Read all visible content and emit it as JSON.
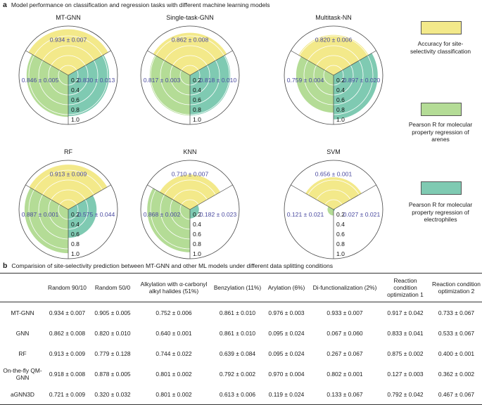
{
  "panel_a": {
    "letter": "a",
    "title": "Model performance on classification and regression tasks with different machine learning models"
  },
  "panel_b": {
    "letter": "b",
    "title": "Comparision of site-selectivity prediction between MT-GNN and other ML models under different data splitting conditions"
  },
  "colors": {
    "accuracy": "#f3e98a",
    "pearson_arenes": "#b4dc96",
    "pearson_electrophiles": "#7fcab2",
    "label_text": "#4a4aa0",
    "grid": "#ffffff"
  },
  "legend": [
    {
      "label": "Accuracy for site-selectivity classification",
      "color_key": "accuracy"
    },
    {
      "label": "Pearson R for molecular property regression of arenes",
      "color_key": "pearson_arenes"
    },
    {
      "label": "Pearson R for molecular property regression of electrophiles",
      "color_key": "pearson_electrophiles"
    }
  ],
  "chart_data": [
    {
      "type": "radar",
      "title": "MT-GNN",
      "radial_ticks": [
        "0.2",
        "0.4",
        "0.6",
        "0.8",
        "1.0"
      ],
      "rlim": [
        0,
        1
      ],
      "values": [
        0.934,
        0.846,
        0.83
      ],
      "labels": [
        "0.934 ± 0.007",
        "0.846 ± 0.005",
        "0.830 ± 0.013"
      ]
    },
    {
      "type": "radar",
      "title": "Single-task-GNN",
      "radial_ticks": [
        "0.2",
        "0.4",
        "0.6",
        "0.8",
        "1.0"
      ],
      "rlim": [
        0,
        1
      ],
      "values": [
        0.862,
        0.817,
        0.818
      ],
      "labels": [
        "0.862 ± 0.008",
        "0.817 ± 0.003",
        "0.818 ± 0.010"
      ]
    },
    {
      "type": "radar",
      "title": "Multitask-NN",
      "radial_ticks": [
        "0.2",
        "0.4",
        "0.6",
        "0.8",
        "1.0"
      ],
      "rlim": [
        0,
        1
      ],
      "values": [
        0.82,
        0.759,
        0.897
      ],
      "labels": [
        "0.820 ± 0.006",
        "0.759 ± 0.004",
        "0.897 ± 0.020"
      ]
    },
    {
      "type": "radar",
      "title": "RF",
      "radial_ticks": [
        "0.2",
        "0.4",
        "0.6",
        "0.8",
        "1.0"
      ],
      "rlim": [
        0,
        1
      ],
      "values": [
        0.913,
        0.887,
        0.575
      ],
      "labels": [
        "0.913 ± 0.009",
        "0.887 ± 0.001",
        "0.575 ± 0.044"
      ]
    },
    {
      "type": "radar",
      "title": "KNN",
      "radial_ticks": [
        "0.2",
        "0.4",
        "0.6",
        "0.8",
        "1.0"
      ],
      "rlim": [
        0,
        1
      ],
      "values": [
        0.71,
        0.868,
        0.182
      ],
      "labels": [
        "0.710 ± 0.007",
        "0.868 ± 0.002",
        "0.182 ± 0.023"
      ]
    },
    {
      "type": "radar",
      "title": "SVM",
      "radial_ticks": [
        "0.2",
        "0.4",
        "0.6",
        "0.8",
        "1.0"
      ],
      "rlim": [
        0,
        1
      ],
      "values": [
        0.656,
        0.121,
        0.027
      ],
      "labels": [
        "0.656 ± 0.001",
        "0.121 ± 0.021",
        "0.027 ± 0.021"
      ]
    }
  ],
  "table": {
    "headers": [
      "",
      "Random 90/10",
      "Random 50/0",
      "Alkylation with α-carbonyl alkyl halides (51%)",
      "Benzylation (11%)",
      "Arylation (6%)",
      "Di-functionalization (2%)",
      "Reaction condition optimization 1",
      "Reaction condition optimization 2"
    ],
    "rows": [
      [
        "MT-GNN",
        "0.934 ± 0.007",
        "0.905 ± 0.005",
        "0.752 ± 0.006",
        "0.861 ± 0.010",
        "0.976 ± 0.003",
        "0.933 ± 0.007",
        "0.917 ± 0.042",
        "0.733 ± 0.067"
      ],
      [
        "GNN",
        "0.862 ± 0.008",
        "0.820 ± 0.010",
        "0.640 ± 0.001",
        "0.861 ± 0.010",
        "0.095 ± 0.024",
        "0.067 ± 0.060",
        "0.833 ± 0.041",
        "0.533 ± 0.067"
      ],
      [
        "RF",
        "0.913 ± 0.009",
        "0.779 ± 0.128",
        "0.744 ± 0.022",
        "0.639 ± 0.084",
        "0.095 ± 0.024",
        "0.267 ± 0.067",
        "0.875 ± 0.002",
        "0.400 ± 0.001"
      ],
      [
        "On-the-fly QM-GNN",
        "0.918 ± 0.008",
        "0.878 ± 0.005",
        "0.801 ± 0.002",
        "0.792 ± 0.002",
        "0.970 ± 0.004",
        "0.802 ± 0.001",
        "0.127 ± 0.003",
        "0.362 ± 0.002"
      ],
      [
        "aGNN3D",
        "0.721 ± 0.009",
        "0.320 ± 0.032",
        "0.801 ± 0.002",
        "0.613 ± 0.006",
        "0.119 ± 0.024",
        "0.133 ± 0.067",
        "0.792 ± 0.042",
        "0.467 ± 0.067"
      ]
    ]
  }
}
